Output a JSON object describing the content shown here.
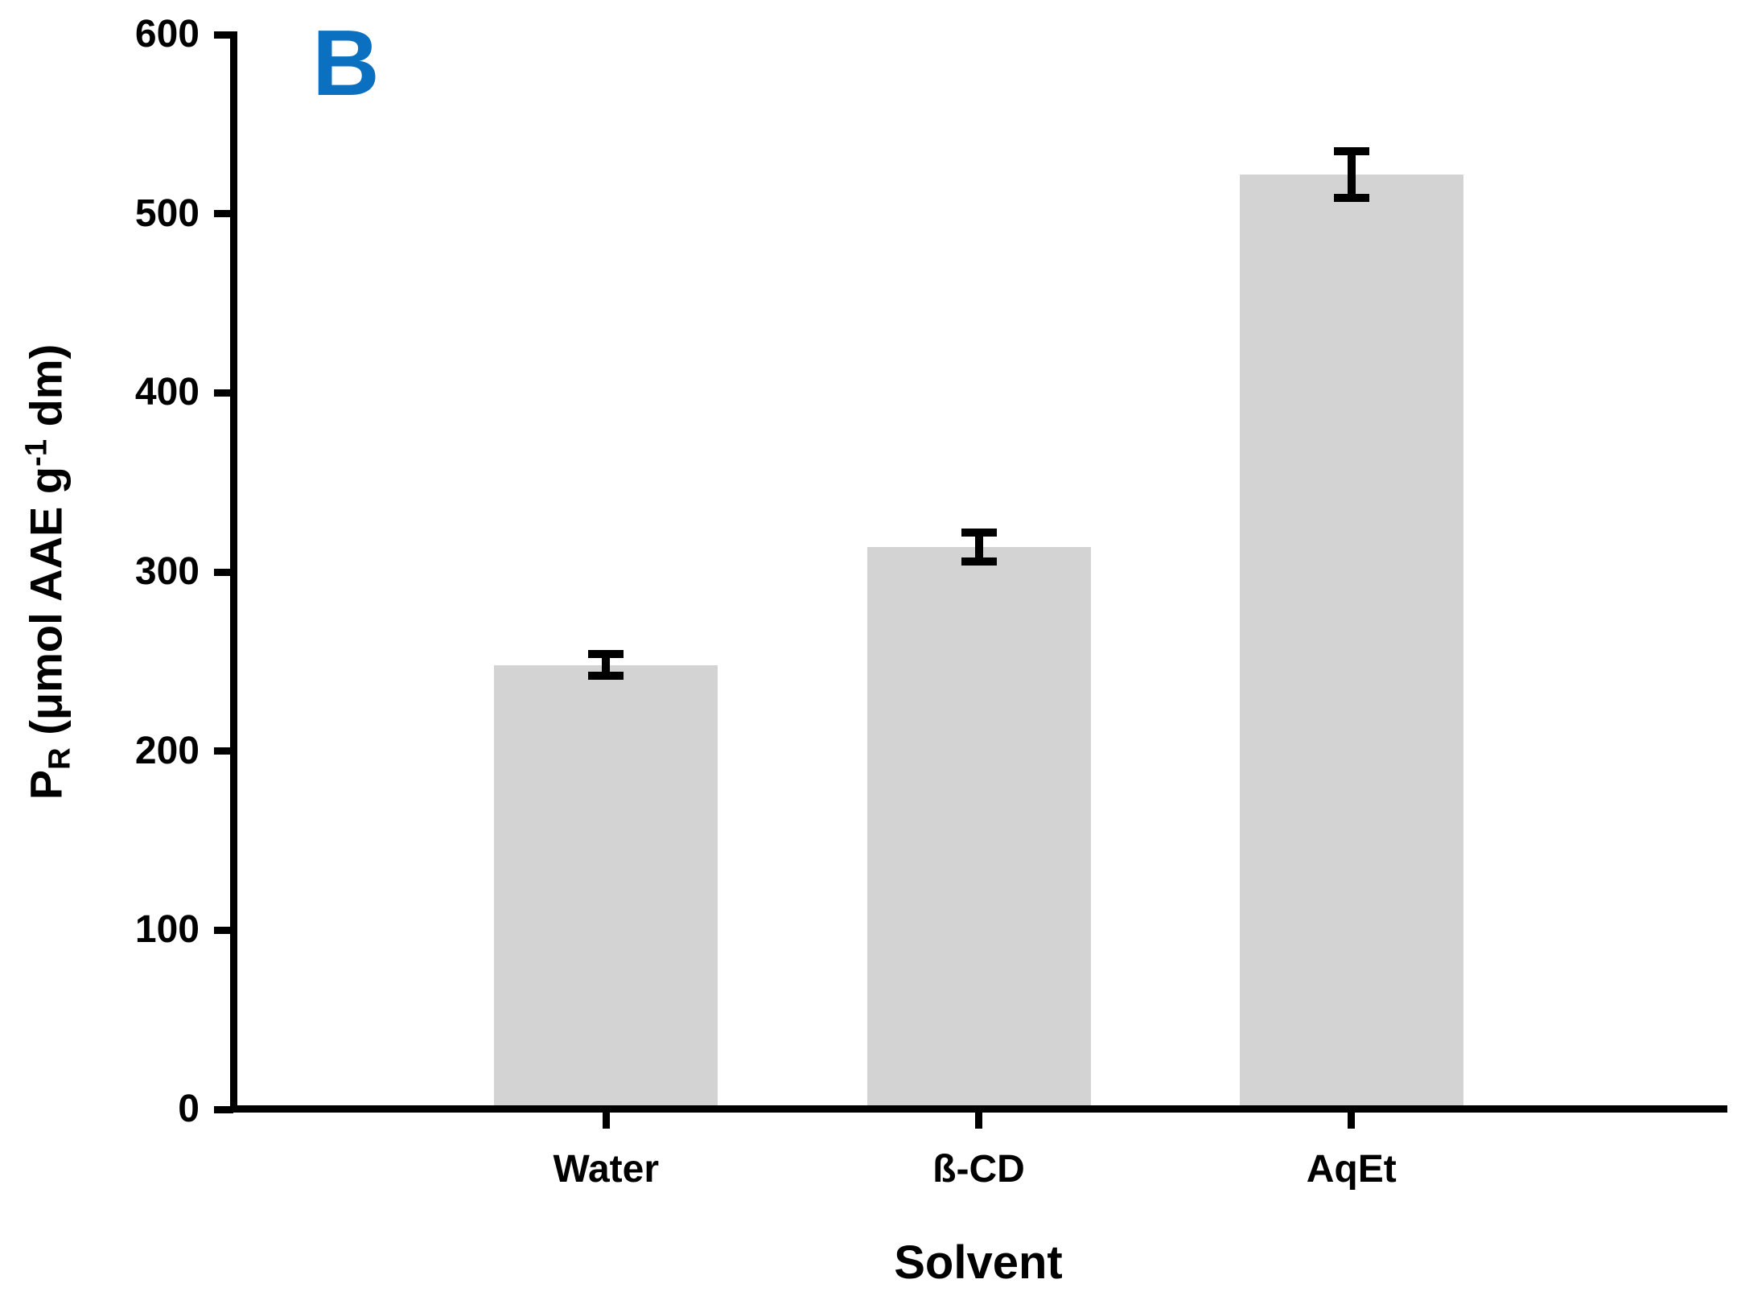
{
  "panel_label": "B",
  "colors": {
    "panel_label": "#0c70c0",
    "bar_fill": "#d3d3d3",
    "axis": "#000000",
    "error_bar": "#000000",
    "background": "#ffffff"
  },
  "y_axis_title_parts": {
    "main": "P",
    "sub": "R",
    "mid": " (μmol AAE g",
    "sup": "-1",
    "end": " dm)"
  },
  "chart_data": {
    "type": "bar",
    "title": "",
    "xlabel": "Solvent",
    "ylabel": "PR (μmol AAE g-1 dm)",
    "categories": [
      "Water",
      "ß-CD",
      "AqEt"
    ],
    "series": [
      {
        "name": "PR",
        "values": [
          248,
          314,
          522
        ],
        "errors": [
          6,
          8,
          13
        ]
      }
    ],
    "ylim": [
      0,
      600
    ],
    "y_ticks": [
      0,
      100,
      200,
      300,
      400,
      500,
      600
    ],
    "grid": false,
    "legend": "none",
    "bar_fill": "#d3d3d3",
    "bar_outline": "none",
    "error_bar_style": "symmetric-caps"
  }
}
